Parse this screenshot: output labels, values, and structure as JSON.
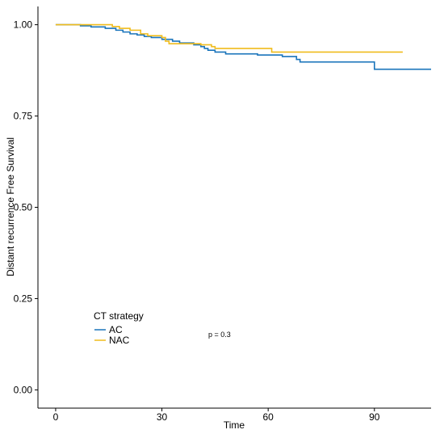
{
  "chart_data": {
    "type": "line",
    "title": "",
    "xlabel": "Time",
    "ylabel": "Distant recurrence Free Survival",
    "xlim": [
      -5,
      106
    ],
    "ylim": [
      -0.05,
      1.05
    ],
    "x_ticks": [
      0,
      30,
      60,
      90
    ],
    "x_tick_labels": [
      "0",
      "30",
      "60",
      "90"
    ],
    "y_ticks": [
      0.0,
      0.25,
      0.5,
      0.75,
      1.0
    ],
    "y_tick_labels": [
      "0.00",
      "0.25",
      "0.50",
      "0.75",
      "1.00"
    ],
    "grid": false,
    "legend": {
      "title": "CT strategy",
      "placement": "bottom-left"
    },
    "annotation": "p = 0.3",
    "series": [
      {
        "name": "AC",
        "color": "#1a74bb",
        "steps": [
          [
            0,
            1.0
          ],
          [
            5,
            1.0
          ],
          [
            7,
            0.997
          ],
          [
            10,
            0.994
          ],
          [
            14,
            0.99
          ],
          [
            17,
            0.985
          ],
          [
            19,
            0.98
          ],
          [
            21,
            0.975
          ],
          [
            23,
            0.972
          ],
          [
            25,
            0.968
          ],
          [
            27,
            0.965
          ],
          [
            30,
            0.96
          ],
          [
            33,
            0.955
          ],
          [
            35,
            0.95
          ],
          [
            39,
            0.945
          ],
          [
            41,
            0.94
          ],
          [
            42,
            0.935
          ],
          [
            43,
            0.93
          ],
          [
            45,
            0.925
          ],
          [
            48,
            0.92
          ],
          [
            57,
            0.917
          ],
          [
            64,
            0.913
          ],
          [
            68,
            0.905
          ],
          [
            69,
            0.898
          ],
          [
            90,
            0.878
          ],
          [
            106,
            0.878
          ]
        ]
      },
      {
        "name": "NAC",
        "color": "#f0bc1c",
        "steps": [
          [
            0,
            1.0
          ],
          [
            6,
            1.0
          ],
          [
            16,
            0.995
          ],
          [
            18,
            0.99
          ],
          [
            21,
            0.985
          ],
          [
            24,
            0.975
          ],
          [
            26,
            0.97
          ],
          [
            30,
            0.965
          ],
          [
            31,
            0.955
          ],
          [
            32,
            0.948
          ],
          [
            41,
            0.945
          ],
          [
            44,
            0.94
          ],
          [
            45,
            0.935
          ],
          [
            61,
            0.925
          ],
          [
            98,
            0.925
          ]
        ]
      }
    ]
  }
}
